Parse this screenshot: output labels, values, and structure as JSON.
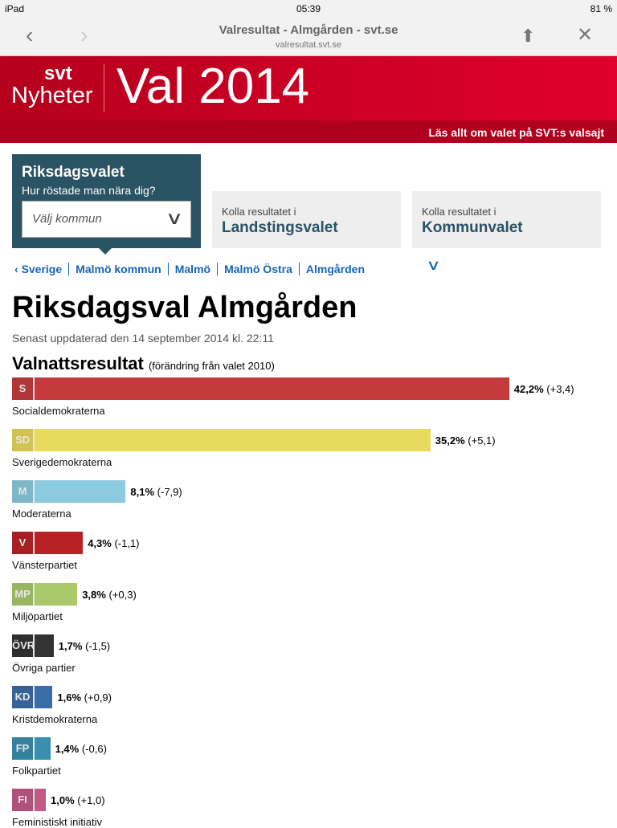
{
  "status": {
    "device": "iPad",
    "time": "05:39",
    "battery": "81 %"
  },
  "browser": {
    "title": "Valresultat - Almgården - svt.se",
    "url": "valresultat.svt.se"
  },
  "banner": {
    "logo_top": "svt",
    "logo_bottom": "Nyheter",
    "title": "Val 2014",
    "link": "Läs allt om valet på SVT:s valsajt"
  },
  "selector": {
    "title": "Riksdagsvalet",
    "question": "Hur röstade man nära dig?",
    "placeholder": "Välj kommun"
  },
  "cards": [
    {
      "pre": "Kolla resultatet i",
      "name": "Landstingsvalet"
    },
    {
      "pre": "Kolla resultatet i",
      "name": "Kommunvalet"
    }
  ],
  "breadcrumbs": [
    "Sverige",
    "Malmö kommun",
    "Malmö",
    "Malmö Östra",
    "Almgården"
  ],
  "page": {
    "title": "Riksdagsval Almgården",
    "updated": "Senast uppdaterad den 14 september 2014 kl. 22:11",
    "section": "Valnattsresultat",
    "section_note": "(förändring från valet 2010)"
  },
  "parties": [
    {
      "abbr": "S",
      "name": "Socialdemokraterna",
      "pct": 42.2,
      "pct_text": "42,2%",
      "change": "(+3,4)",
      "color": "#c53a3c"
    },
    {
      "abbr": "SD",
      "name": "Sverigedemokraterna",
      "pct": 35.2,
      "pct_text": "35,2%",
      "change": "(+5,1)",
      "color": "#e8da5c"
    },
    {
      "abbr": "M",
      "name": "Moderaterna",
      "pct": 8.1,
      "pct_text": "8,1%",
      "change": "(-7,9)",
      "color": "#8ccae0"
    },
    {
      "abbr": "V",
      "name": "Vänsterpartiet",
      "pct": 4.3,
      "pct_text": "4,3%",
      "change": "(-1,1)",
      "color": "#b82226"
    },
    {
      "abbr": "MP",
      "name": "Miljöpartiet",
      "pct": 3.8,
      "pct_text": "3,8%",
      "change": "(+0,3)",
      "color": "#a9c96b"
    },
    {
      "abbr": "ÖVR",
      "name": "Övriga partier",
      "pct": 1.7,
      "pct_text": "1,7%",
      "change": "(-1,5)",
      "color": "#333333"
    },
    {
      "abbr": "KD",
      "name": "Kristdemokraterna",
      "pct": 1.6,
      "pct_text": "1,6%",
      "change": "(+0,9)",
      "color": "#3b6ea8"
    },
    {
      "abbr": "FP",
      "name": "Folkpartiet",
      "pct": 1.4,
      "pct_text": "1,4%",
      "change": "(-0,6)",
      "color": "#3a8fb0"
    },
    {
      "abbr": "FI",
      "name": "Feministiskt initiativ",
      "pct": 1.0,
      "pct_text": "1,0%",
      "change": "(+1,0)",
      "color": "#c25a87"
    }
  ]
}
